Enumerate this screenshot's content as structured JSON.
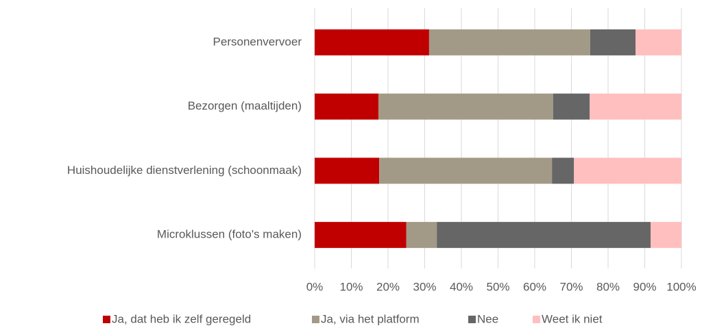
{
  "chart_data": {
    "type": "stacked_barh",
    "categories": [
      "Personenvervoer",
      "Bezorgen (maaltijden)",
      "Huishoudelijke dienstverlening (schoonmaak)",
      "Microklussen (foto's maken)"
    ],
    "series": [
      {
        "name": "Ja, dat heb ik zelf geregeld",
        "color": "#c00000",
        "values": [
          31.2,
          17.4,
          17.6,
          25.0
        ]
      },
      {
        "name": "Ja, via het platform",
        "color": "#a29a86",
        "values": [
          43.9,
          47.6,
          47.1,
          8.3
        ]
      },
      {
        "name": "Nee",
        "color": "#666666",
        "values": [
          12.4,
          10.0,
          6.0,
          58.3
        ]
      },
      {
        "name": "Weet ik niet",
        "color": "#ffbfbf",
        "values": [
          12.5,
          25.0,
          29.3,
          8.4
        ]
      }
    ],
    "xlim": [
      0,
      100
    ],
    "xticks": [
      {
        "value": 0,
        "label": "0%"
      },
      {
        "value": 10,
        "label": "10%"
      },
      {
        "value": 20,
        "label": "20%"
      },
      {
        "value": 30,
        "label": "30%"
      },
      {
        "value": 40,
        "label": "40%"
      },
      {
        "value": 50,
        "label": "50%"
      },
      {
        "value": 60,
        "label": "60%"
      },
      {
        "value": 70,
        "label": "70%"
      },
      {
        "value": 80,
        "label": "80%"
      },
      {
        "value": 90,
        "label": "90%"
      },
      {
        "value": 100,
        "label": "100%"
      }
    ],
    "grid": true,
    "legend": "bottom"
  }
}
